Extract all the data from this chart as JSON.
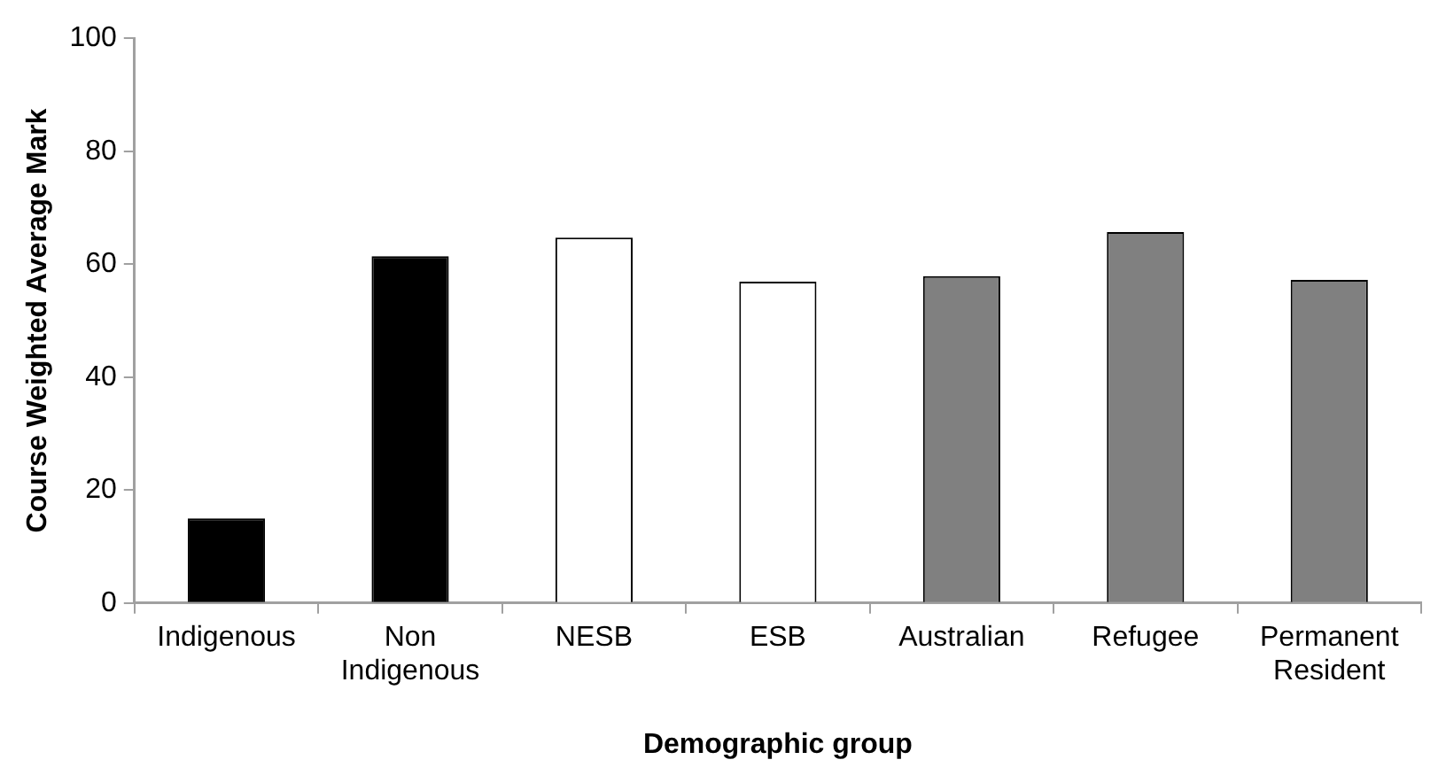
{
  "chart_data": {
    "type": "bar",
    "xlabel": "Demographic group",
    "ylabel": "Course Weighted Average Mark",
    "categories": [
      "Indigenous",
      "Non Indigenous",
      "NESB",
      "ESB",
      "Australian",
      "Refugee",
      "Permanent Resident"
    ],
    "values": [
      15,
      61.4,
      64.7,
      56.9,
      57.9,
      65.7,
      57.2
    ],
    "colors": [
      "#000000",
      "#000000",
      "#ffffff",
      "#ffffff",
      "#808080",
      "#808080",
      "#808080"
    ],
    "ylim": [
      0,
      100
    ],
    "yticks": [
      0,
      20,
      40,
      60,
      80,
      100
    ],
    "grid": false,
    "legend": false
  }
}
